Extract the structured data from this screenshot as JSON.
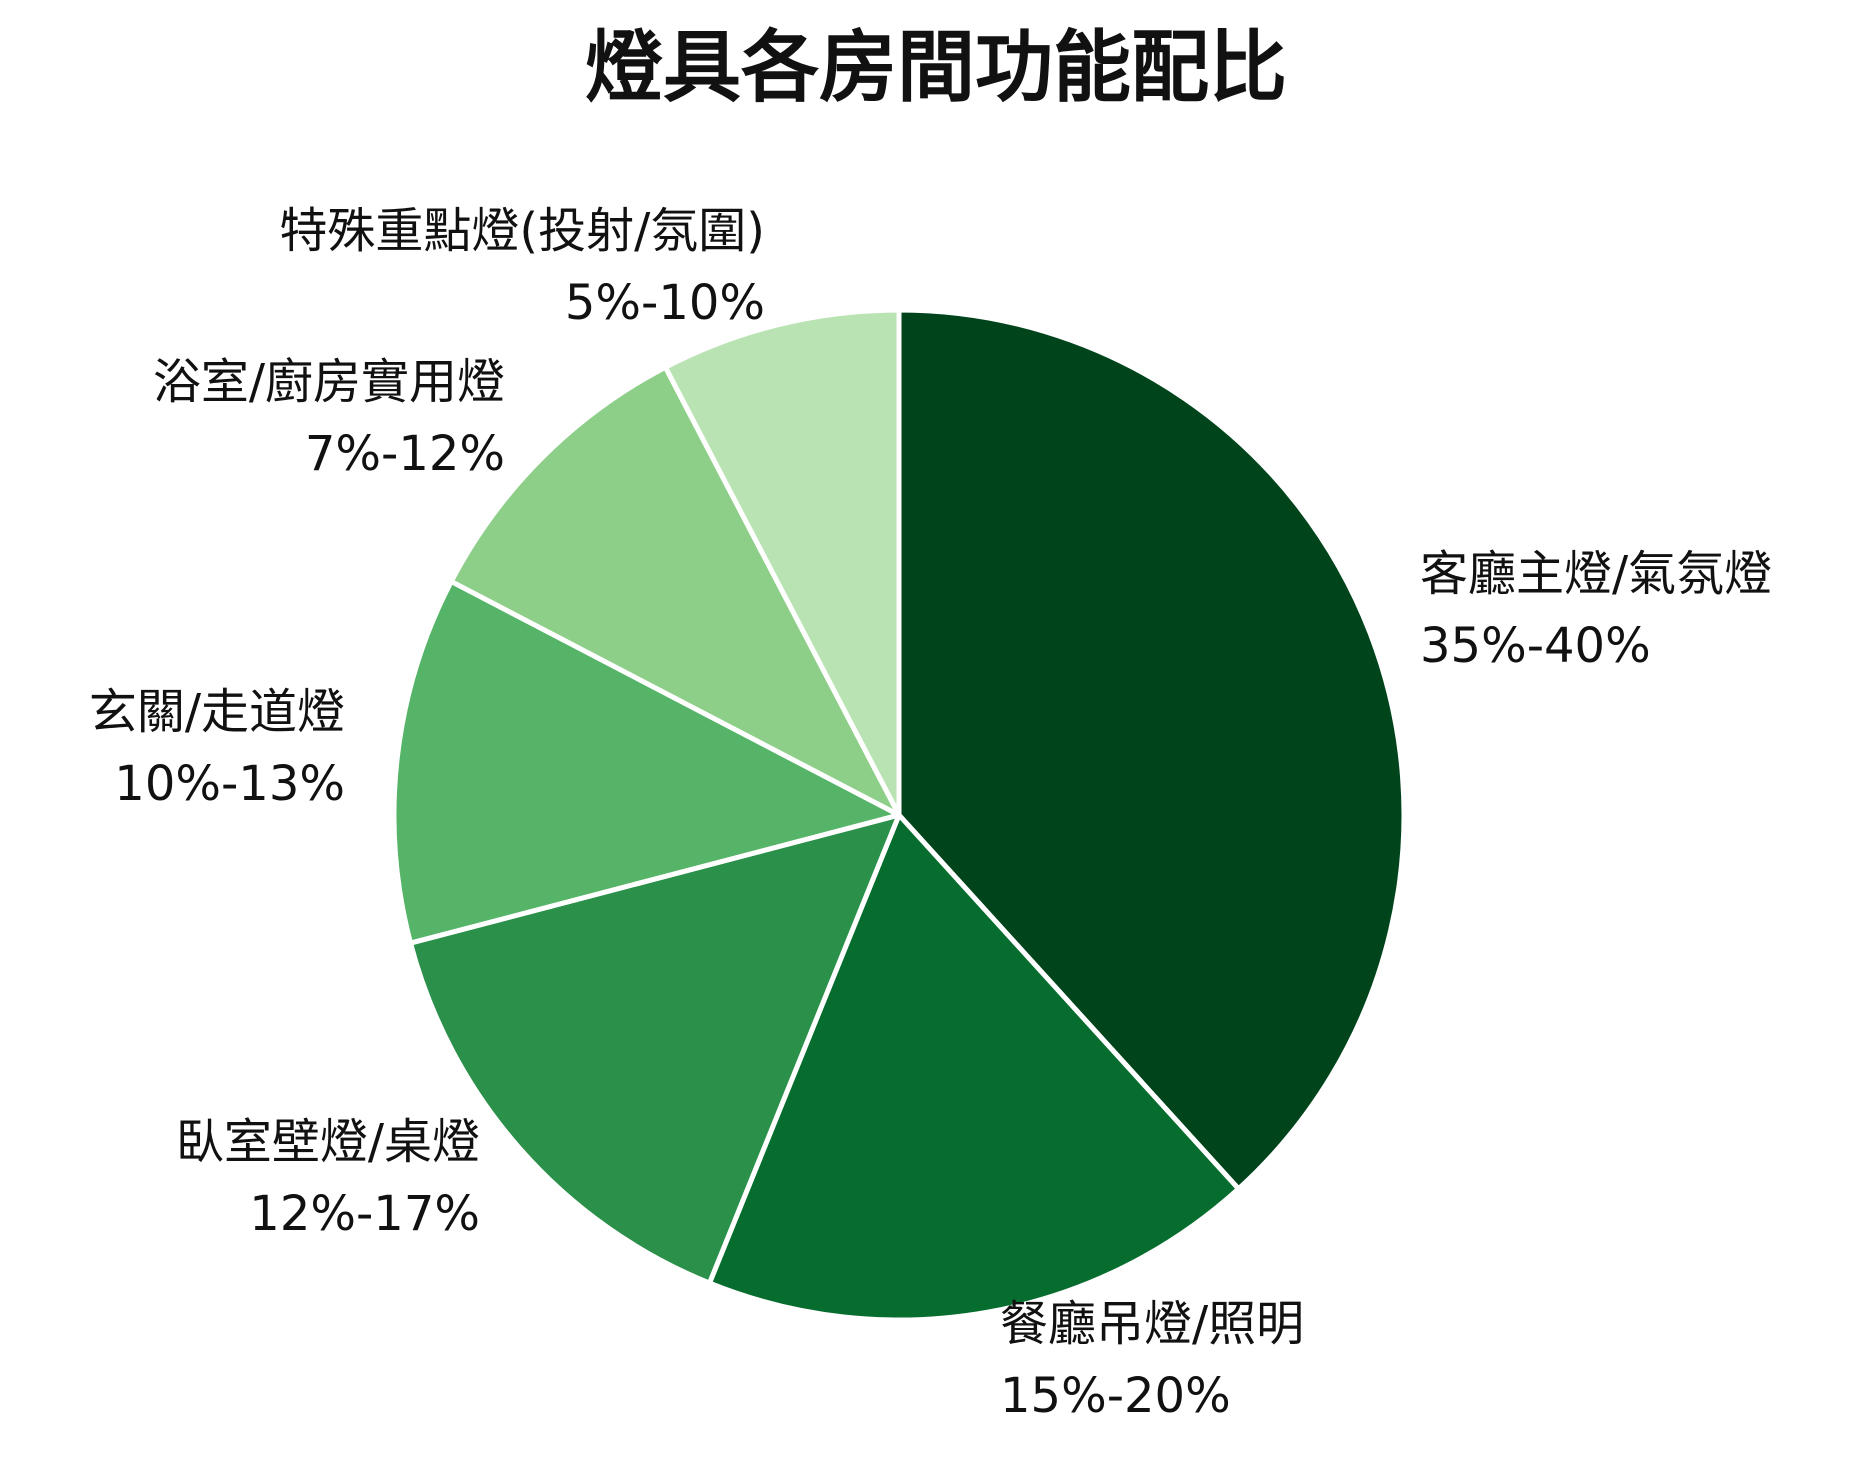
{
  "chart_data": {
    "type": "pie",
    "title": "燈具各房間功能配比",
    "slices": [
      {
        "name": "客廳主燈/氣氛燈",
        "range_label": "35%-40%",
        "value": 37.5,
        "color": "#00441b"
      },
      {
        "name": "餐廳吊燈/照明",
        "range_label": "15%-20%",
        "value": 17.5,
        "color": "#066d2e"
      },
      {
        "name": "臥室壁燈/桌燈",
        "range_label": "12%-17%",
        "value": 14.5,
        "color": "#2b914a"
      },
      {
        "name": "玄關/走道燈",
        "range_label": "10%-13%",
        "value": 11.5,
        "color": "#55b467"
      },
      {
        "name": "浴室/廚房實用燈",
        "range_label": "7%-12%",
        "value": 9.5,
        "color": "#8dcf89"
      },
      {
        "name": "特殊重點燈(投射/氛圍)",
        "range_label": "5%-10%",
        "value": 7.5,
        "color": "#b9e3b2"
      }
    ],
    "start_angle": "12 o'clock",
    "direction": "clockwise",
    "slice_border_color": "#ffffff",
    "legend": "none"
  }
}
